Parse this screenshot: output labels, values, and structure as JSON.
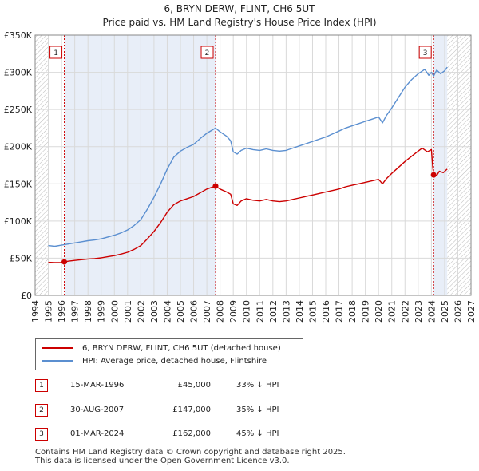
{
  "chart_data": {
    "type": "line",
    "title": "6, BRYN DERW, FLINT, CH6 5UT",
    "subtitle": "Price paid vs. HM Land Registry's House Price Index (HPI)",
    "xlabel": "",
    "ylabel": "",
    "xlim": [
      1994,
      2027
    ],
    "ylim": [
      0,
      350000
    ],
    "x_ticks": [
      "1994",
      "1995",
      "1996",
      "1997",
      "1998",
      "1999",
      "2000",
      "2001",
      "2002",
      "2003",
      "2004",
      "2005",
      "2006",
      "2007",
      "2008",
      "2009",
      "2010",
      "2011",
      "2012",
      "2013",
      "2014",
      "2015",
      "2016",
      "2017",
      "2018",
      "2019",
      "2020",
      "2021",
      "2022",
      "2023",
      "2024",
      "2025",
      "2026",
      "2027"
    ],
    "y_ticks": [
      {
        "value": 0,
        "label": "£0"
      },
      {
        "value": 50000,
        "label": "£50K"
      },
      {
        "value": 100000,
        "label": "£100K"
      },
      {
        "value": 150000,
        "label": "£150K"
      },
      {
        "value": 200000,
        "label": "£200K"
      },
      {
        "value": 250000,
        "label": "£250K"
      },
      {
        "value": 300000,
        "label": "£300K"
      },
      {
        "value": 350000,
        "label": "£350K"
      }
    ],
    "data_start": 1995.0,
    "data_end": 2025.2,
    "series": [
      {
        "name": "6, BRYN DERW, FLINT, CH6 5UT (detached house)",
        "color": "#cc0000",
        "points": [
          [
            1995.0,
            44500
          ],
          [
            1995.5,
            44000
          ],
          [
            1996.0,
            44200
          ],
          [
            1996.21,
            45000
          ],
          [
            1996.5,
            46000
          ],
          [
            1997.0,
            47000
          ],
          [
            1997.5,
            48000
          ],
          [
            1998.0,
            49000
          ],
          [
            1998.5,
            49500
          ],
          [
            1999.0,
            50500
          ],
          [
            1999.5,
            52000
          ],
          [
            2000.0,
            53500
          ],
          [
            2000.5,
            55500
          ],
          [
            2001.0,
            58000
          ],
          [
            2001.5,
            62000
          ],
          [
            2002.0,
            67000
          ],
          [
            2002.5,
            76000
          ],
          [
            2003.0,
            86000
          ],
          [
            2003.5,
            98000
          ],
          [
            2004.0,
            112000
          ],
          [
            2004.5,
            122000
          ],
          [
            2005.0,
            127000
          ],
          [
            2005.5,
            130000
          ],
          [
            2006.0,
            133000
          ],
          [
            2006.5,
            138000
          ],
          [
            2007.0,
            143000
          ],
          [
            2007.66,
            147000
          ],
          [
            2008.0,
            143000
          ],
          [
            2008.5,
            139000
          ],
          [
            2008.8,
            136000
          ],
          [
            2009.0,
            123000
          ],
          [
            2009.3,
            121000
          ],
          [
            2009.6,
            127000
          ],
          [
            2010.0,
            130000
          ],
          [
            2010.5,
            128000
          ],
          [
            2011.0,
            127000
          ],
          [
            2011.5,
            129000
          ],
          [
            2012.0,
            127000
          ],
          [
            2012.5,
            126000
          ],
          [
            2013.0,
            127000
          ],
          [
            2013.5,
            129000
          ],
          [
            2014.0,
            131000
          ],
          [
            2014.5,
            133000
          ],
          [
            2015.0,
            135000
          ],
          [
            2015.5,
            137000
          ],
          [
            2016.0,
            139000
          ],
          [
            2016.5,
            141000
          ],
          [
            2017.0,
            143000
          ],
          [
            2017.5,
            146000
          ],
          [
            2018.0,
            148000
          ],
          [
            2018.5,
            150000
          ],
          [
            2019.0,
            152000
          ],
          [
            2019.5,
            154000
          ],
          [
            2020.0,
            156000
          ],
          [
            2020.3,
            150000
          ],
          [
            2020.6,
            157000
          ],
          [
            2021.0,
            164000
          ],
          [
            2021.5,
            172000
          ],
          [
            2022.0,
            180000
          ],
          [
            2022.5,
            187000
          ],
          [
            2023.0,
            194000
          ],
          [
            2023.3,
            198000
          ],
          [
            2023.7,
            193000
          ],
          [
            2024.0,
            196000
          ],
          [
            2024.1,
            173000
          ],
          [
            2024.17,
            162000
          ],
          [
            2024.4,
            161000
          ],
          [
            2024.6,
            167000
          ],
          [
            2024.9,
            165000
          ],
          [
            2025.2,
            170000
          ]
        ]
      },
      {
        "name": "HPI: Average price, detached house, Flintshire",
        "color": "#5b8fd0",
        "points": [
          [
            1995.0,
            67000
          ],
          [
            1995.5,
            66000
          ],
          [
            1996.0,
            67500
          ],
          [
            1996.5,
            69000
          ],
          [
            1997.0,
            70500
          ],
          [
            1997.5,
            72000
          ],
          [
            1998.0,
            73500
          ],
          [
            1998.5,
            74500
          ],
          [
            1999.0,
            76000
          ],
          [
            1999.5,
            78500
          ],
          [
            2000.0,
            81000
          ],
          [
            2000.5,
            84000
          ],
          [
            2001.0,
            88000
          ],
          [
            2001.5,
            94000
          ],
          [
            2002.0,
            102000
          ],
          [
            2002.5,
            116000
          ],
          [
            2003.0,
            132000
          ],
          [
            2003.5,
            150000
          ],
          [
            2004.0,
            170000
          ],
          [
            2004.5,
            186000
          ],
          [
            2005.0,
            194000
          ],
          [
            2005.5,
            199000
          ],
          [
            2006.0,
            203000
          ],
          [
            2006.5,
            211000
          ],
          [
            2007.0,
            218000
          ],
          [
            2007.66,
            225000
          ],
          [
            2008.0,
            220000
          ],
          [
            2008.5,
            214000
          ],
          [
            2008.8,
            208000
          ],
          [
            2009.0,
            193000
          ],
          [
            2009.3,
            190000
          ],
          [
            2009.6,
            195000
          ],
          [
            2010.0,
            198000
          ],
          [
            2010.5,
            196000
          ],
          [
            2011.0,
            195000
          ],
          [
            2011.5,
            197000
          ],
          [
            2012.0,
            195000
          ],
          [
            2012.5,
            194000
          ],
          [
            2013.0,
            195000
          ],
          [
            2013.5,
            198000
          ],
          [
            2014.0,
            201000
          ],
          [
            2014.5,
            204000
          ],
          [
            2015.0,
            207000
          ],
          [
            2015.5,
            210000
          ],
          [
            2016.0,
            213000
          ],
          [
            2016.5,
            217000
          ],
          [
            2017.0,
            221000
          ],
          [
            2017.5,
            225000
          ],
          [
            2018.0,
            228000
          ],
          [
            2018.5,
            231000
          ],
          [
            2019.0,
            234000
          ],
          [
            2019.5,
            237000
          ],
          [
            2020.0,
            240000
          ],
          [
            2020.3,
            232000
          ],
          [
            2020.6,
            242000
          ],
          [
            2021.0,
            252000
          ],
          [
            2021.5,
            266000
          ],
          [
            2022.0,
            280000
          ],
          [
            2022.5,
            290000
          ],
          [
            2023.0,
            298000
          ],
          [
            2023.5,
            304000
          ],
          [
            2023.8,
            296000
          ],
          [
            2024.0,
            300000
          ],
          [
            2024.17,
            295000
          ],
          [
            2024.4,
            303000
          ],
          [
            2024.7,
            298000
          ],
          [
            2025.0,
            302000
          ],
          [
            2025.2,
            307000
          ]
        ]
      }
    ],
    "sales": [
      {
        "label": "1",
        "year": 1996.21,
        "price": 45000
      },
      {
        "label": "2",
        "year": 2007.66,
        "price": 147000
      },
      {
        "label": "3",
        "year": 2024.17,
        "price": 162000
      }
    ],
    "legend": [
      "6, BRYN DERW, FLINT, CH6 5UT (detached house)",
      "HPI: Average price, detached house, Flintshire"
    ]
  },
  "table": [
    {
      "num": "1",
      "date": "15-MAR-1996",
      "price": "£45,000",
      "hpi": "33% ↓ HPI"
    },
    {
      "num": "2",
      "date": "30-AUG-2007",
      "price": "£147,000",
      "hpi": "35% ↓ HPI"
    },
    {
      "num": "3",
      "date": "01-MAR-2024",
      "price": "£162,000",
      "hpi": "45% ↓ HPI"
    }
  ],
  "footer": {
    "line1": "Contains HM Land Registry data © Crown copyright and database right 2025.",
    "line2": "This data is licensed under the Open Government Licence v3.0."
  },
  "colors": {
    "property": "#cc0000",
    "hpi": "#5b8fd0",
    "grid": "#d9d9d9",
    "band": "#e8eef8",
    "hatch": "#bbbbbb"
  }
}
